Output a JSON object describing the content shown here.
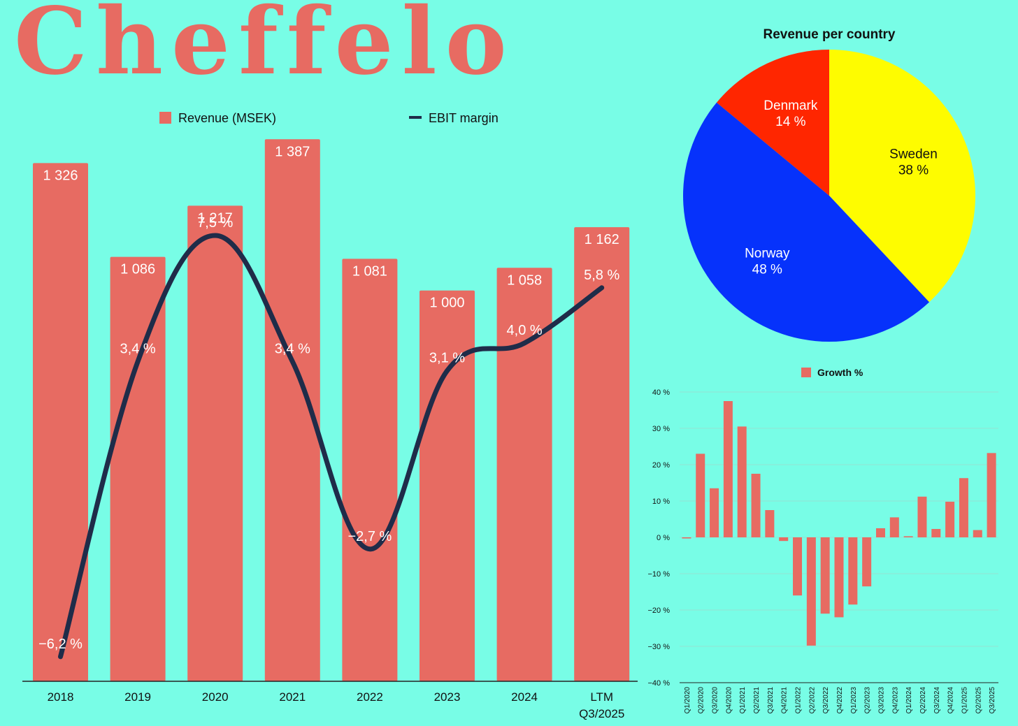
{
  "brand": {
    "logo_text": "Cheffelo"
  },
  "colors": {
    "background": "#78fde6",
    "bar": "#e76b62",
    "line": "#1f2c49",
    "sweden": "#fefc00",
    "norway": "#0632fb",
    "denmark": "#ff2600"
  },
  "chart_data": [
    {
      "id": "revenue_ebit",
      "type": "bar",
      "title": "",
      "categories": [
        "2018",
        "2019",
        "2020",
        "2021",
        "2022",
        "2023",
        "2024",
        "LTM\nQ3/2025"
      ],
      "series": [
        {
          "name": "Revenue (MSEK)",
          "type": "bar",
          "values": [
            1326,
            1086,
            1217,
            1387,
            1081,
            1000,
            1058,
            1162
          ],
          "labels": [
            "1 326",
            "1 086",
            "1 217",
            "1 387",
            "1 081",
            "1 000",
            "1 058",
            "1 162"
          ]
        },
        {
          "name": "EBIT margin",
          "type": "line",
          "values": [
            -6.2,
            3.4,
            7.5,
            3.4,
            -2.7,
            3.1,
            4.0,
            5.8
          ],
          "labels": [
            "−6,2 %",
            "3,4 %",
            "7,5 %",
            "3,4 %",
            "−2,7 %",
            "3,1 %",
            "4,0 %",
            "5,8 %"
          ]
        }
      ],
      "ylim": [
        0,
        1400
      ],
      "y2lim": [
        -7,
        11
      ],
      "legend": "top"
    },
    {
      "id": "country_pie",
      "type": "pie",
      "title": "Revenue per country",
      "slices": [
        {
          "name": "Sweden",
          "value": 38,
          "label": "38 %"
        },
        {
          "name": "Norway",
          "value": 48,
          "label": "48 %"
        },
        {
          "name": "Denmark",
          "value": 14,
          "label": "14 %"
        }
      ]
    },
    {
      "id": "growth",
      "type": "bar",
      "title": "",
      "series": [
        {
          "name": "Growth %"
        }
      ],
      "categories": [
        "Q1/2020",
        "Q2/2020",
        "Q3/2020",
        "Q4/2020",
        "Q1/2021",
        "Q2/2021",
        "Q3/2021",
        "Q4/2021",
        "Q1/2022",
        "Q2/2022",
        "Q3/2022",
        "Q4/2022",
        "Q1/2023",
        "Q2/2023",
        "Q3/2023",
        "Q4/2023",
        "Q1/2024",
        "Q2/2024",
        "Q3/2024",
        "Q4/2024",
        "Q1/2025",
        "Q2/2025",
        "Q3/2025"
      ],
      "values": [
        -0.3,
        23,
        13.5,
        37.5,
        30.5,
        17.5,
        7.5,
        -1,
        -16,
        -29.8,
        -21,
        -22,
        -18.5,
        -13.5,
        2.5,
        5.5,
        0.3,
        11.2,
        2.3,
        9.8,
        16.3,
        2,
        23.2
      ],
      "yticks": [
        "40 %",
        "30 %",
        "20 %",
        "10 %",
        "0 %",
        "−10 %",
        "−20 %",
        "−30 %",
        "−40 %"
      ],
      "ylim": [
        -40,
        40
      ],
      "grid": true,
      "legend": "top"
    }
  ]
}
